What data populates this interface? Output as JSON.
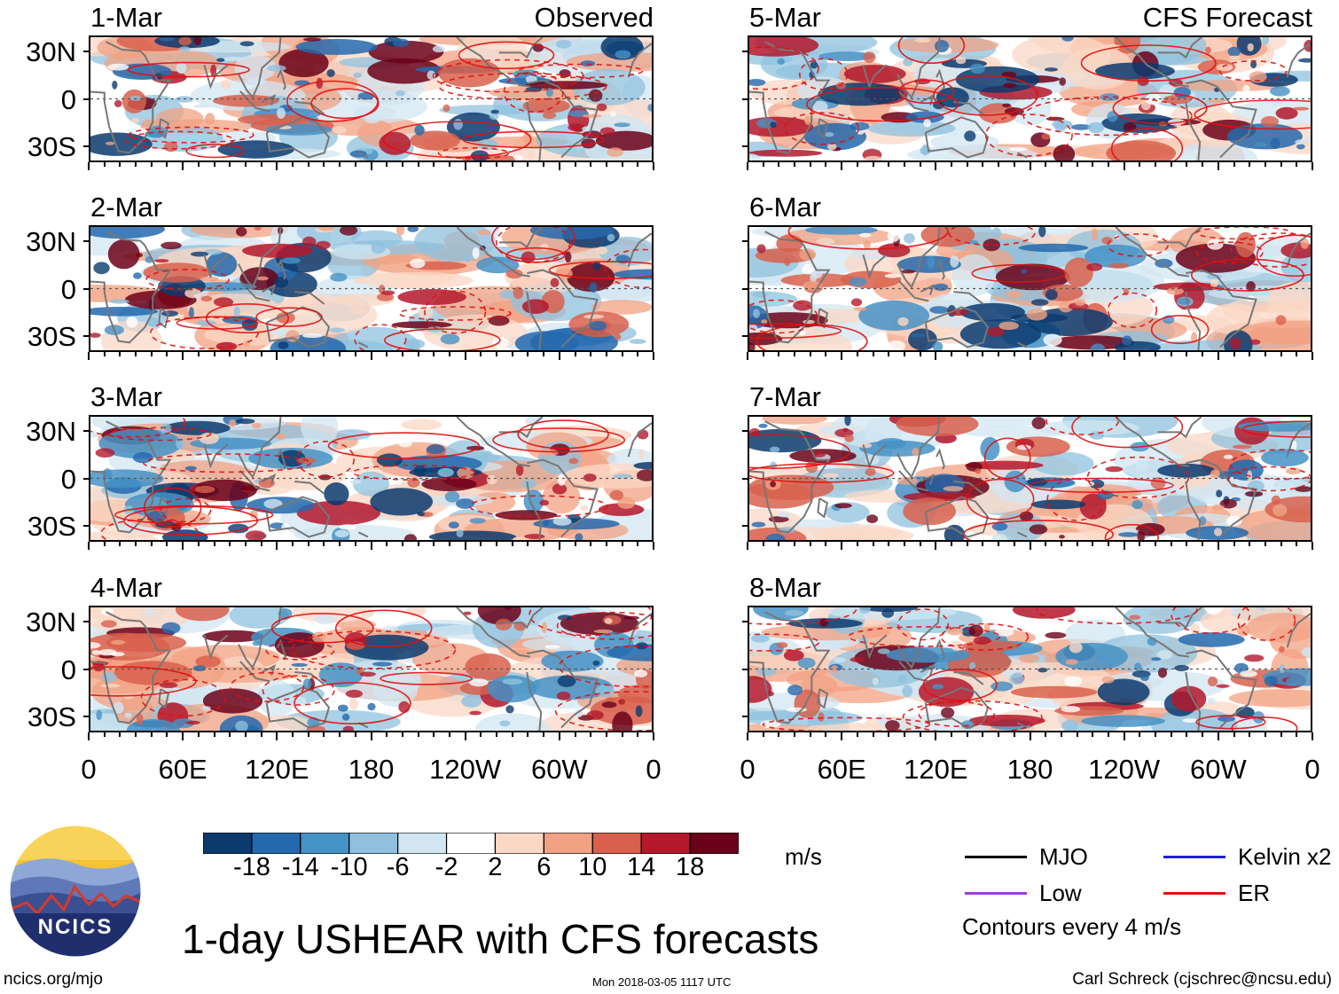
{
  "chart_data": {
    "type": "heatmap",
    "title": "1-day USHEAR with CFS forecasts",
    "variable": "USHEAR",
    "units": "m/s",
    "columns": [
      {
        "tag": "Observed",
        "panels": [
          "1-Mar",
          "2-Mar",
          "3-Mar",
          "4-Mar"
        ]
      },
      {
        "tag": "CFS Forecast",
        "panels": [
          "5-Mar",
          "6-Mar",
          "7-Mar",
          "8-Mar"
        ]
      }
    ],
    "y_tick_labels": [
      "30N",
      "0",
      "30S"
    ],
    "x_tick_labels": [
      "0",
      "60E",
      "120E",
      "180",
      "120W",
      "60W",
      "0"
    ],
    "x_range_deg": [
      0,
      360
    ],
    "y_range_deg": [
      -40,
      40
    ],
    "colorbar": {
      "ticks": [
        "-18",
        "-14",
        "-10",
        "-6",
        "-2",
        "2",
        "6",
        "10",
        "14",
        "18"
      ],
      "colors": [
        "#0b3a6e",
        "#2468ad",
        "#4592c6",
        "#8fc1de",
        "#d2e6f2",
        "#ffffff",
        "#fbd8c6",
        "#f1a283",
        "#d8604c",
        "#b3182b",
        "#6b0119"
      ],
      "units": "m/s"
    },
    "legend": [
      {
        "label": "MJO",
        "color": "#000000"
      },
      {
        "label": "Kelvin x2",
        "color": "#2222cc"
      },
      {
        "label": "Low",
        "color": "#a03ce0"
      },
      {
        "label": "ER",
        "color": "#e01010"
      }
    ],
    "contour_note": "Contours every 4 m/s"
  },
  "footer": {
    "logo_text": "NCICS",
    "website": "ncics.org/mjo",
    "timestamp": "Mon 2018-03-05 1117 UTC",
    "author": "Carl Schreck (cjschrec@ncsu.edu)"
  }
}
